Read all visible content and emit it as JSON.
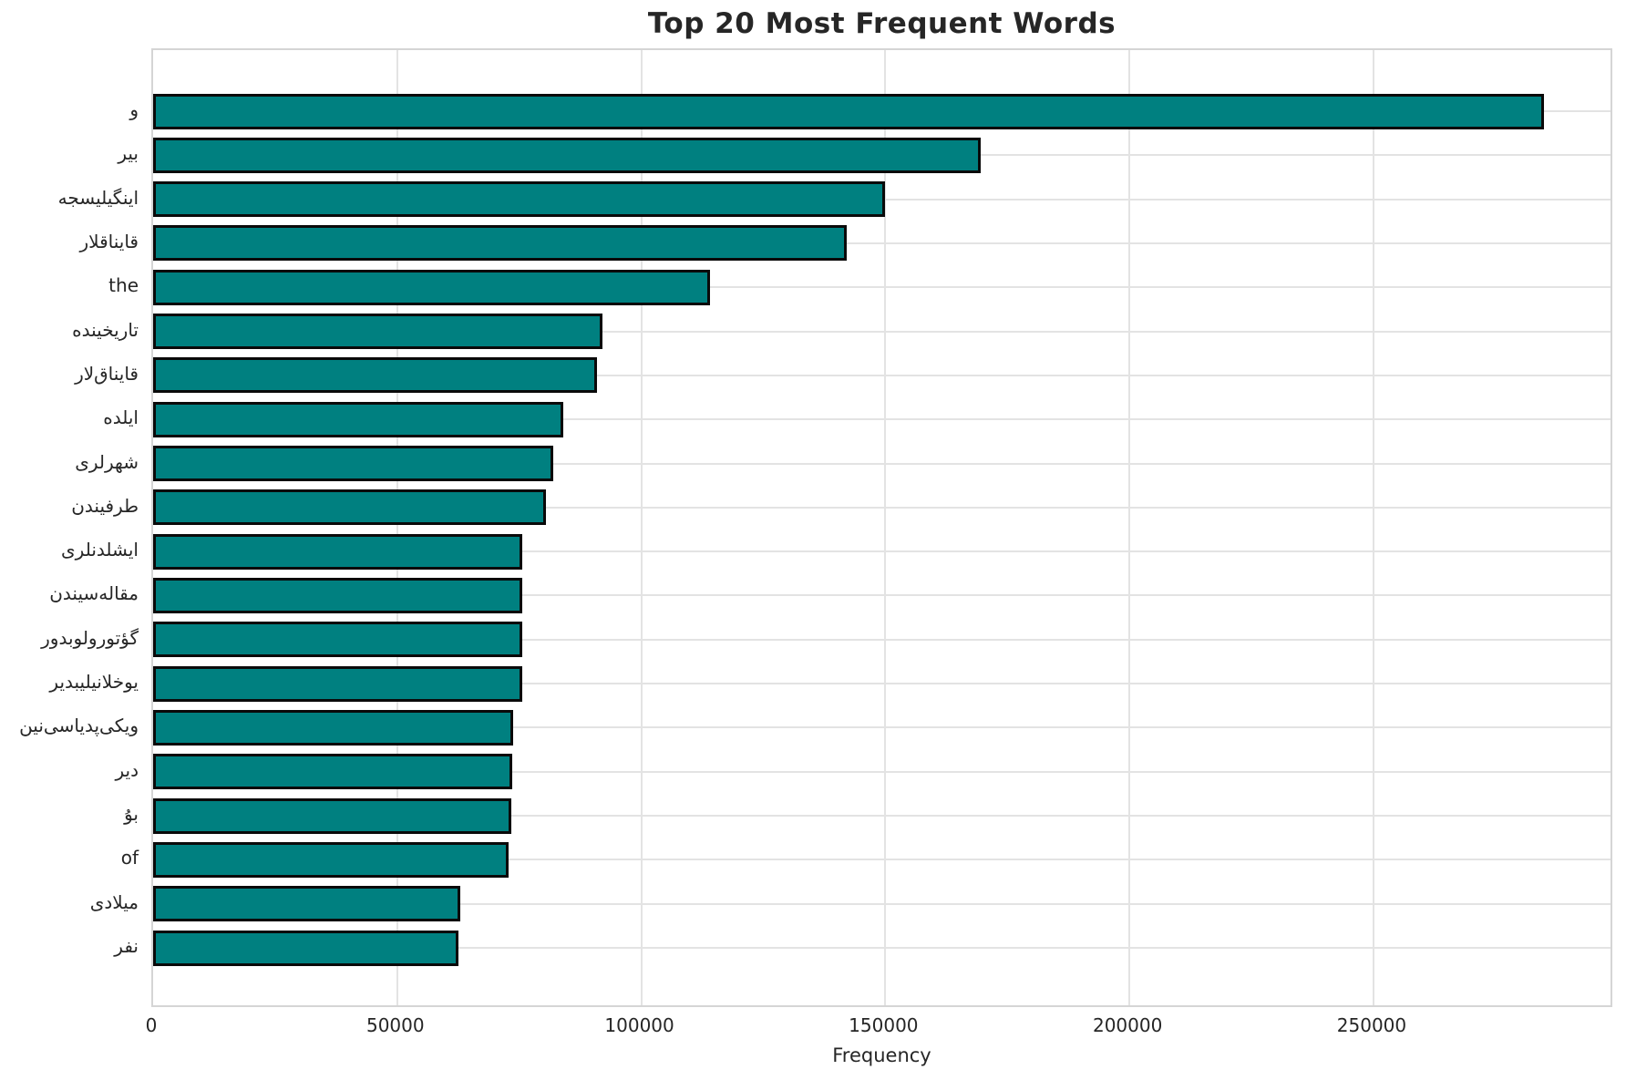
{
  "title": "Top 20 Most Frequent Words",
  "chart_data": {
    "type": "bar",
    "orientation": "horizontal",
    "title": "Top 20 Most Frequent Words",
    "xlabel": "Frequency",
    "ylabel": "",
    "categories": [
      "و",
      "بیر",
      "اینگیلیسجه",
      "قایناقلار",
      "the",
      "تاریخینده",
      "قایناق‌لار",
      "ایلده",
      "شهرلری",
      "طرفیندن",
      "ایشلدنلری",
      "مقاله‌سیندن",
      "گؤتورولوبدور",
      "یوخلانیلیبدیر",
      "ویکی‌پدیاسی‌نین",
      "دیر",
      "بۇ",
      "of",
      "میلادی",
      "نفر"
    ],
    "values": [
      285000,
      169500,
      150000,
      142000,
      114000,
      92000,
      91000,
      84000,
      82000,
      80500,
      75600,
      75600,
      75600,
      75600,
      73700,
      73500,
      73300,
      72800,
      63000,
      62500
    ],
    "x_ticks": [
      0,
      50000,
      100000,
      150000,
      200000,
      250000
    ],
    "x_tick_labels": [
      "0",
      "50000",
      "100000",
      "150000",
      "200000",
      "250000"
    ],
    "xlim": [
      0,
      299300
    ],
    "grid": true,
    "legend": "none",
    "bar_color": "#008080",
    "bar_edge_color": "#0a0a0a",
    "grid_color": "#e3e3e3",
    "spine_color": "#d5d5d5",
    "text_color": "#262626",
    "background_color": "#ffffff"
  }
}
